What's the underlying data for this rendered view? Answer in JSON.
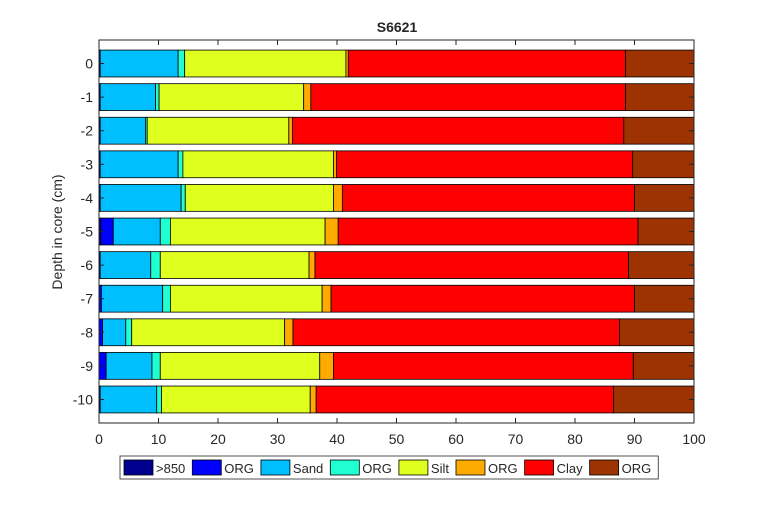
{
  "chart_data": {
    "type": "bar",
    "orientation": "horizontal",
    "stacked": true,
    "title": "S6621",
    "xlabel": "",
    "ylabel": "Depth in core (cm)",
    "xlim": [
      0,
      100
    ],
    "ylim": [
      -10.7,
      0.7
    ],
    "xticks": [
      "0",
      "10",
      "20",
      "30",
      "40",
      "50",
      "60",
      "70",
      "80",
      "90",
      "100"
    ],
    "yticks": [
      "0",
      "-1",
      "-2",
      "-3",
      "-4",
      "-5",
      "-6",
      "-7",
      "-8",
      "-9",
      "-10"
    ],
    "grid": false,
    "legend_position": "bottom",
    "categories": [
      0,
      -1,
      -2,
      -3,
      -4,
      -5,
      -6,
      -7,
      -8,
      -9,
      -10
    ],
    "series": [
      {
        "name": ">850",
        "color": "#00008f",
        "values": [
          0,
          0,
          0,
          0,
          0,
          0.3,
          0,
          0,
          0,
          0,
          0
        ]
      },
      {
        "name": "ORG",
        "color": "#0000ff",
        "values": [
          0.2,
          0.2,
          0.2,
          0.2,
          0.2,
          2.1,
          0.2,
          0.4,
          0.6,
          1.2,
          0.2
        ]
      },
      {
        "name": "Sand",
        "color": "#00bfff",
        "values": [
          13.1,
          9.3,
          7.6,
          13.1,
          13.6,
          7.9,
          8.5,
          10.3,
          3.9,
          7.7,
          9.5
        ]
      },
      {
        "name": "ORG",
        "color": "#20ffd2",
        "values": [
          1.1,
          0.6,
          0.3,
          0.8,
          0.7,
          1.7,
          1.6,
          1.3,
          1.0,
          1.4,
          0.8
        ]
      },
      {
        "name": "Silt",
        "color": "#dfff1f",
        "values": [
          27.1,
          24.3,
          23.8,
          25.3,
          24.9,
          26.0,
          25.0,
          25.5,
          25.7,
          26.8,
          25.0
        ]
      },
      {
        "name": "ORG",
        "color": "#ffaa00",
        "values": [
          0.4,
          1.2,
          0.6,
          0.5,
          1.5,
          2.2,
          1.0,
          1.5,
          1.4,
          2.3,
          1.0
        ]
      },
      {
        "name": "Clay",
        "color": "#ff0000",
        "values": [
          46.6,
          52.9,
          55.7,
          49.8,
          49.1,
          50.4,
          52.7,
          51.0,
          54.9,
          50.4,
          50.0
        ]
      },
      {
        "name": "ORG",
        "color": "#9c3300",
        "values": [
          11.5,
          11.5,
          11.8,
          10.3,
          10.0,
          9.4,
          11.0,
          10.0,
          12.5,
          10.2,
          13.5
        ]
      }
    ]
  }
}
